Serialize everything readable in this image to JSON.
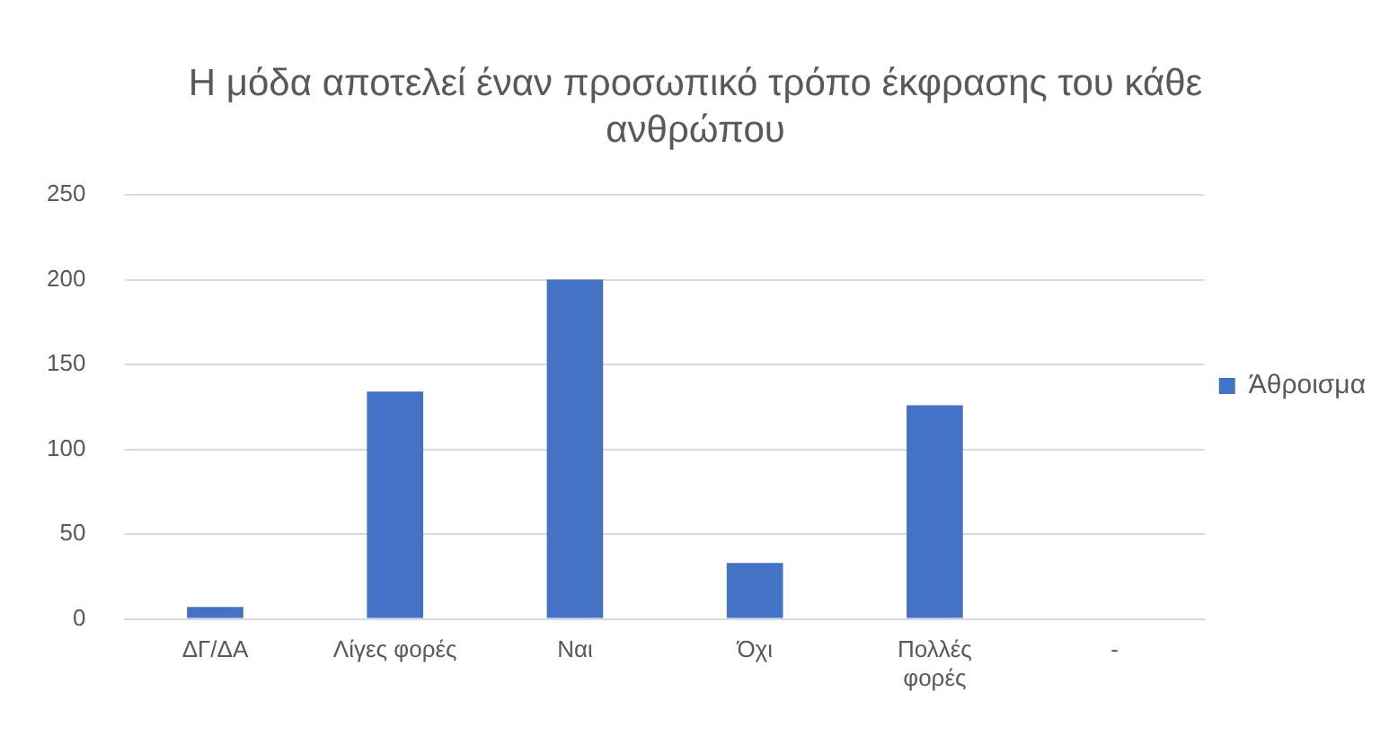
{
  "chart_data": {
    "type": "bar",
    "title": "Η μόδα αποτελεί έναν προσωπικό τρόπο έκφρασης του κάθε ανθρώπου",
    "categories": [
      "ΔΓ/ΔΑ",
      "Λίγες φορές",
      "Ναι",
      "Όχι",
      "Πολλές φορές",
      "-"
    ],
    "series": [
      {
        "name": "Άθροισμα",
        "color": "#4472c4",
        "values": [
          7,
          134,
          200,
          33,
          126,
          null
        ]
      }
    ],
    "ylim": [
      0,
      250
    ],
    "yticks": [
      0,
      50,
      100,
      150,
      200,
      250
    ],
    "grid": "y",
    "legend": "right"
  }
}
